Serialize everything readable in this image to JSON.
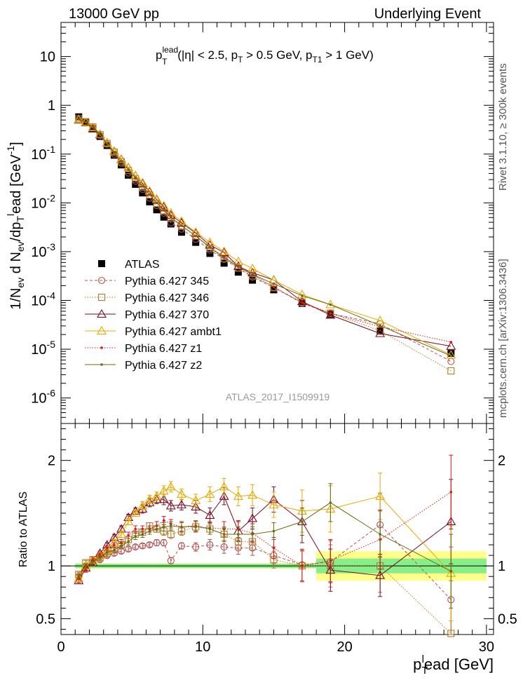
{
  "header": {
    "left": "13000 GeV pp",
    "right": "Underlying Event"
  },
  "side": {
    "rivet": "Rivet 3.1.10, ≥ 300k events",
    "mcplots": "mcplots.cern.ch [arXiv:1306.3436]"
  },
  "chart_data": [
    {
      "type": "scatter",
      "panel": "main",
      "title_parts": {
        "p": "p",
        "sup": "lead",
        "sub": "T",
        "rest1": " (|η| < 2.5, p",
        "rest2": " > 0.5 GeV, p",
        "sub2": "T1",
        "rest3": " > 1 GeV)"
      },
      "watermark": "ATLAS_2017_I1509919",
      "ylabel": "1/N_ev d N_ev/dp_T^lead [GeV^-1]",
      "ylabel_parts": {
        "a": "1/N",
        "ev": "ev",
        "b": " d N",
        "c": "/dp",
        "t": "T",
        "lead": "l",
        "d": "ead [GeV",
        "exp": "-1",
        "e": "]"
      },
      "y_scale": "log",
      "ylim": [
        3e-07,
        50
      ],
      "xlim": [
        0,
        30.5
      ],
      "y_ticks": [
        "10",
        "1",
        "10^-1",
        "10^-2",
        "10^-3",
        "10^-4",
        "10^-5",
        "10^-6"
      ],
      "legend_position": "bottom-left",
      "legend": [
        {
          "label": "ATLAS",
          "color": "#000000",
          "marker": "square-filled",
          "line": "none"
        },
        {
          "label": "Pythia 6.427 345",
          "color": "#b35050",
          "marker": "circle-open",
          "line": "dashed"
        },
        {
          "label": "Pythia 6.427 346",
          "color": "#b07a28",
          "marker": "square-open",
          "line": "dotted"
        },
        {
          "label": "Pythia 6.427 370",
          "color": "#7a0a22",
          "marker": "triangle-open",
          "line": "solid"
        },
        {
          "label": "Pythia 6.427 ambt1",
          "color": "#e8a800",
          "marker": "triangle-open",
          "line": "solid"
        },
        {
          "label": "Pythia 6.427 z1",
          "color": "#d81818",
          "marker": "dot",
          "line": "dotted"
        },
        {
          "label": "Pythia 6.427 z2",
          "color": "#6b6b10",
          "marker": "dot",
          "line": "solid"
        }
      ],
      "x": [
        1.25,
        1.75,
        2.25,
        2.75,
        3.25,
        3.75,
        4.25,
        4.75,
        5.25,
        5.75,
        6.25,
        6.75,
        7.25,
        7.75,
        8.5,
        9.5,
        10.5,
        11.5,
        12.5,
        13.5,
        15.0,
        17.0,
        19.0,
        22.5,
        27.5
      ],
      "series": [
        {
          "name": "ATLAS",
          "values": [
            0.58,
            0.45,
            0.33,
            0.23,
            0.15,
            0.095,
            0.06,
            0.037,
            0.024,
            0.016,
            0.0105,
            0.0072,
            0.0051,
            0.0037,
            0.0025,
            0.00155,
            0.00092,
            0.00058,
            0.00038,
            0.00026,
            0.000165,
            8.7e-05,
            5.2e-05,
            2.35e-05,
            8.2e-06
          ]
        },
        {
          "name": "Pythia 6.427 345",
          "values": [
            0.51,
            0.45,
            0.35,
            0.24,
            0.16,
            0.1,
            0.065,
            0.041,
            0.028,
            0.019,
            0.0125,
            0.0088,
            0.0062,
            0.0039,
            0.0029,
            0.0018,
            0.00108,
            0.0007,
            0.00046,
            0.0003,
            0.000185,
            8.8e-05,
            5.4e-05,
            3.3e-05,
            5.6e-06
          ]
        },
        {
          "name": "Pythia 6.427 346",
          "values": [
            0.53,
            0.46,
            0.36,
            0.25,
            0.165,
            0.11,
            0.07,
            0.046,
            0.031,
            0.021,
            0.0145,
            0.0097,
            0.0068,
            0.0048,
            0.0033,
            0.0021,
            0.00118,
            0.00072,
            0.00046,
            0.00032,
            0.000182,
            9.2e-05,
            5.5e-05,
            2.4e-05,
            3.6e-06
          ]
        },
        {
          "name": "Pythia 6.427 370",
          "values": [
            0.5,
            0.44,
            0.33,
            0.25,
            0.17,
            0.115,
            0.078,
            0.053,
            0.036,
            0.025,
            0.0168,
            0.0117,
            0.0082,
            0.0056,
            0.0039,
            0.0024,
            0.00136,
            0.00096,
            0.0005,
            0.00037,
            0.000262,
            9.5e-05,
            5e-05,
            2.1e-05,
            1.15e-05
          ]
        },
        {
          "name": "Pythia 6.427 ambt1",
          "values": [
            0.51,
            0.45,
            0.35,
            0.255,
            0.17,
            0.115,
            0.077,
            0.053,
            0.036,
            0.026,
            0.0175,
            0.012,
            0.0087,
            0.0062,
            0.0042,
            0.0025,
            0.00155,
            0.00101,
            0.00063,
            0.00045,
            0.00026,
            0.000132,
            8.2e-05,
            3.85e-05,
            7.6e-06
          ]
        },
        {
          "name": "Pythia 6.427 z1",
          "values": [
            0.52,
            0.45,
            0.36,
            0.25,
            0.165,
            0.107,
            0.071,
            0.048,
            0.032,
            0.022,
            0.0148,
            0.01,
            0.0073,
            0.0052,
            0.0034,
            0.0021,
            0.00125,
            0.00078,
            0.00051,
            0.00034,
            0.00019,
            9e-05,
            5.4e-05,
            2.9e-05,
            1.4e-05
          ]
        },
        {
          "name": "Pythia 6.427 z2",
          "values": [
            0.52,
            0.45,
            0.36,
            0.25,
            0.165,
            0.107,
            0.071,
            0.048,
            0.033,
            0.022,
            0.0148,
            0.01,
            0.007,
            0.005,
            0.0034,
            0.0021,
            0.00122,
            0.00075,
            0.00049,
            0.00034,
            0.00022,
            0.000125,
            8.2e-05,
            3.05e-05,
            7.3e-06
          ]
        }
      ]
    },
    {
      "type": "scatter",
      "panel": "ratio",
      "ylabel": "Ratio to ATLAS",
      "xlabel": "p_T^lead [GeV]",
      "xlabel_parts": {
        "p": "p",
        "t": "T",
        "l": "l",
        "rest": "ead [GeV]"
      },
      "xlim": [
        0,
        30.5
      ],
      "ylim": [
        0.35,
        2.35
      ],
      "x_ticks": [
        "0",
        "10",
        "20",
        "30"
      ],
      "y_ticks": [
        "0.5",
        "1",
        "2"
      ],
      "x": [
        1.25,
        1.75,
        2.25,
        2.75,
        3.25,
        3.75,
        4.25,
        4.75,
        5.25,
        5.75,
        6.25,
        6.75,
        7.25,
        7.75,
        8.5,
        9.5,
        10.5,
        11.5,
        12.5,
        13.5,
        15.0,
        17.0,
        19.0,
        22.5,
        27.5
      ],
      "band_stat": {
        "x_edges": [
          1.0,
          18.0,
          30.0
        ],
        "halfwidth": [
          0.02,
          0.07
        ]
      },
      "band_total": {
        "x_edges": [
          1.0,
          18.0,
          30.0
        ],
        "halfwidth": [
          0.025,
          0.14
        ]
      },
      "series": [
        {
          "name": "Pythia 6.427 345",
          "values": [
            0.9,
            1.0,
            1.04,
            1.06,
            1.1,
            1.12,
            1.14,
            1.16,
            1.18,
            1.19,
            1.2,
            1.22,
            1.22,
            1.05,
            1.19,
            1.18,
            1.2,
            1.18,
            1.17,
            1.17,
            1.1,
            1.01,
            1.04,
            1.39,
            0.68
          ],
          "errors": [
            0.02,
            0.02,
            0.02,
            0.02,
            0.02,
            0.02,
            0.02,
            0.02,
            0.02,
            0.02,
            0.02,
            0.03,
            0.03,
            0.03,
            0.03,
            0.04,
            0.05,
            0.06,
            0.06,
            0.07,
            0.08,
            0.15,
            0.2,
            0.3,
            0.5
          ]
        },
        {
          "name": "Pythia 6.427 346",
          "values": [
            0.92,
            1.03,
            1.06,
            1.08,
            1.12,
            1.15,
            1.2,
            1.25,
            1.3,
            1.32,
            1.38,
            1.35,
            1.33,
            1.3,
            1.33,
            1.37,
            1.35,
            1.3,
            1.23,
            1.23,
            1.06,
            1.0,
            1.0,
            1.0,
            0.36
          ],
          "errors": [
            0.02,
            0.02,
            0.02,
            0.02,
            0.02,
            0.02,
            0.02,
            0.03,
            0.03,
            0.03,
            0.03,
            0.03,
            0.04,
            0.04,
            0.04,
            0.05,
            0.05,
            0.07,
            0.07,
            0.08,
            0.08,
            0.14,
            0.2,
            0.25,
            0.5
          ]
        },
        {
          "name": "Pythia 6.427 370",
          "values": [
            0.86,
            0.98,
            1.03,
            1.12,
            1.2,
            1.27,
            1.35,
            1.46,
            1.52,
            1.54,
            1.6,
            1.63,
            1.63,
            1.57,
            1.58,
            1.56,
            1.48,
            1.66,
            1.33,
            1.45,
            1.63,
            1.42,
            0.96,
            0.91,
            1.42
          ],
          "errors": [
            0.02,
            0.02,
            0.02,
            0.02,
            0.02,
            0.03,
            0.03,
            0.03,
            0.03,
            0.04,
            0.04,
            0.04,
            0.05,
            0.05,
            0.05,
            0.06,
            0.07,
            0.08,
            0.09,
            0.1,
            0.12,
            0.2,
            0.2,
            0.2,
            0.4
          ]
        },
        {
          "name": "Pythia 6.427 ambt1",
          "values": [
            0.88,
            1.0,
            1.05,
            1.1,
            1.15,
            1.22,
            1.3,
            1.42,
            1.5,
            1.57,
            1.63,
            1.66,
            1.71,
            1.75,
            1.68,
            1.62,
            1.68,
            1.75,
            1.66,
            1.67,
            1.58,
            1.52,
            1.54,
            1.66,
            0.93
          ],
          "errors": [
            0.02,
            0.02,
            0.02,
            0.02,
            0.02,
            0.03,
            0.03,
            0.03,
            0.03,
            0.04,
            0.04,
            0.04,
            0.05,
            0.05,
            0.05,
            0.06,
            0.07,
            0.08,
            0.09,
            0.1,
            0.12,
            0.2,
            0.22,
            0.22,
            0.45
          ]
        },
        {
          "name": "Pythia 6.427 z1",
          "values": [
            0.89,
            0.96,
            1.06,
            1.1,
            1.17,
            1.2,
            1.22,
            1.29,
            1.35,
            1.35,
            1.35,
            1.38,
            1.43,
            1.4,
            1.37,
            1.37,
            1.36,
            1.35,
            1.35,
            1.31,
            1.17,
            1.0,
            1.05,
            1.25,
            1.7
          ],
          "errors": [
            0.02,
            0.02,
            0.02,
            0.02,
            0.02,
            0.02,
            0.03,
            0.03,
            0.03,
            0.03,
            0.03,
            0.04,
            0.04,
            0.04,
            0.05,
            0.05,
            0.06,
            0.07,
            0.08,
            0.09,
            0.1,
            0.15,
            0.2,
            0.28,
            0.35
          ]
        },
        {
          "name": "Pythia 6.427 z2",
          "values": [
            0.9,
            1.0,
            1.04,
            1.08,
            1.13,
            1.15,
            1.19,
            1.23,
            1.28,
            1.3,
            1.33,
            1.35,
            1.37,
            1.38,
            1.37,
            1.38,
            1.35,
            1.3,
            1.3,
            1.3,
            1.33,
            1.42,
            1.6,
            1.3,
            0.95
          ],
          "errors": [
            0.02,
            0.02,
            0.02,
            0.02,
            0.02,
            0.02,
            0.02,
            0.03,
            0.03,
            0.03,
            0.03,
            0.03,
            0.04,
            0.04,
            0.04,
            0.05,
            0.05,
            0.06,
            0.07,
            0.07,
            0.08,
            0.13,
            0.18,
            0.22,
            0.35
          ]
        }
      ]
    }
  ]
}
